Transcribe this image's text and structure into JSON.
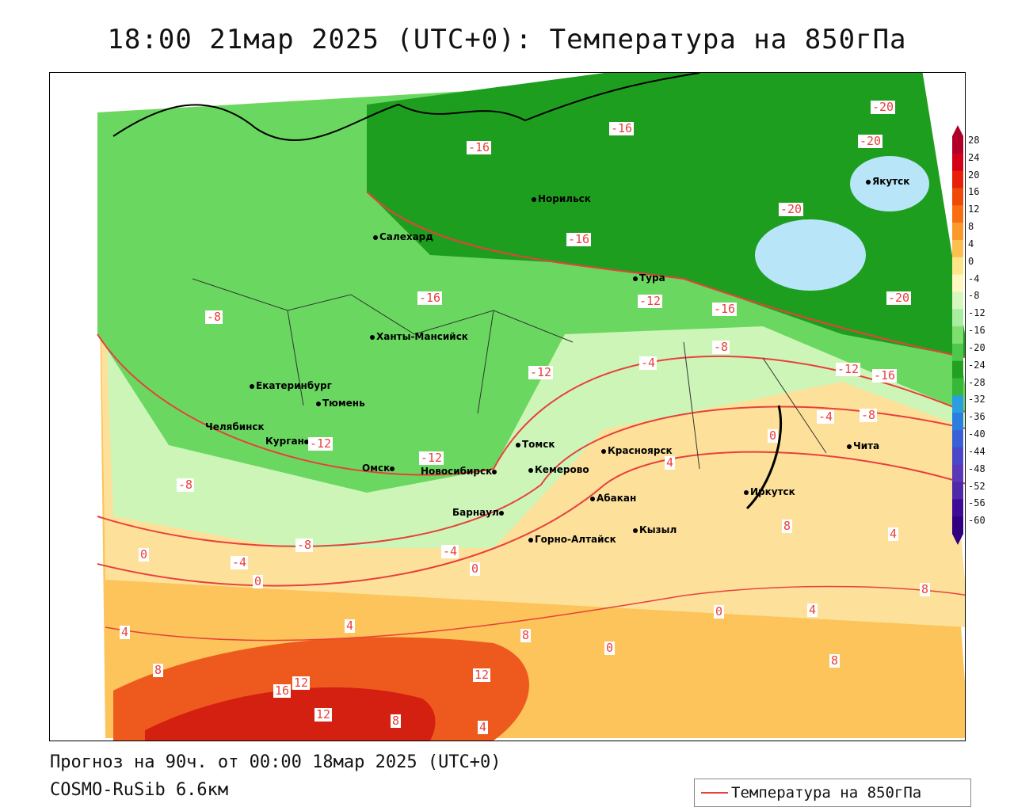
{
  "title": "18:00 21мар 2025 (UTC+0): Температура на 850гПа",
  "footer": {
    "forecast": "Прогноз на 90ч. от 00:00 18мар 2025 (UTC+0)",
    "model": "COSMO-RuSib 6.6км"
  },
  "legend": {
    "label": "Температура на 850гПа",
    "line_color": "#e8403c"
  },
  "colorbar": {
    "ticks": [
      "28",
      "24",
      "20",
      "16",
      "12",
      "8",
      "4",
      "0",
      "-4",
      "-8",
      "-12",
      "-16",
      "-20",
      "-24",
      "-28",
      "-32",
      "-36",
      "-40",
      "-44",
      "-48",
      "-52",
      "-56",
      "-60"
    ],
    "colors": [
      "#b0002a",
      "#d4001a",
      "#e8200a",
      "#f04a0a",
      "#f86e10",
      "#fb9a2c",
      "#fdc050",
      "#fde58a",
      "#fff6c0",
      "#d6f7c0",
      "#a8eea0",
      "#7ede70",
      "#4cc84a",
      "#22a022",
      "#38b838",
      "#2a9ee0",
      "#2a7ee0",
      "#3a60d8",
      "#4a48c8",
      "#5a38b8",
      "#5028a8",
      "#400a98",
      "#300080"
    ]
  },
  "cities": [
    {
      "name": "Якутск"
    },
    {
      "name": "Норильск"
    },
    {
      "name": "Салехард"
    },
    {
      "name": "Тура"
    },
    {
      "name": "Ханты-Мансийск"
    },
    {
      "name": "Екатеринбург"
    },
    {
      "name": "Тюмень"
    },
    {
      "name": "Челябинск"
    },
    {
      "name": "Курган"
    },
    {
      "name": "Омск"
    },
    {
      "name": "Новосибирск"
    },
    {
      "name": "Томск"
    },
    {
      "name": "Кемерово"
    },
    {
      "name": "Красноярск"
    },
    {
      "name": "Барнаул"
    },
    {
      "name": "Абакан"
    },
    {
      "name": "Кызыл"
    },
    {
      "name": "Горно-Алтайск"
    },
    {
      "name": "Иркутск"
    },
    {
      "name": "Чита"
    }
  ],
  "isotherm_labels": [
    "-20",
    "-20",
    "-20",
    "-20",
    "-16",
    "-16",
    "-16",
    "-16",
    "-16",
    "-16",
    "-12",
    "-12",
    "-12",
    "-12",
    "-12",
    "-8",
    "-8",
    "-8",
    "-8",
    "-8",
    "-4",
    "-4",
    "-4",
    "-4",
    "0",
    "0",
    "0",
    "0",
    "0",
    "0",
    "4",
    "4",
    "4",
    "4",
    "4",
    "4",
    "8",
    "8",
    "8",
    "8",
    "8",
    "8",
    "12",
    "12",
    "12",
    "16"
  ]
}
